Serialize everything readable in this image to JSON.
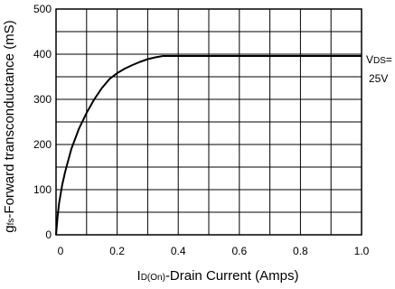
{
  "chart_data": {
    "type": "line",
    "title": "",
    "xlabel": {
      "main": "I",
      "sub": "D(On)",
      "rest": "-Drain Current (Amps)"
    },
    "ylabel": {
      "main": "g",
      "sub": "fs",
      "rest": "-Forward transconductance (mS)"
    },
    "xlim": [
      0,
      1.0
    ],
    "ylim": [
      0,
      500
    ],
    "x_ticks": [
      "0",
      "0.2",
      "0.4",
      "0.6",
      "0.8",
      "1.0"
    ],
    "x_tick_values": [
      0,
      0.2,
      0.4,
      0.6,
      0.8,
      1.0
    ],
    "y_ticks": [
      "0",
      "100",
      "200",
      "300",
      "400",
      "500"
    ],
    "y_tick_values": [
      0,
      100,
      200,
      300,
      400,
      500
    ],
    "grid": true,
    "grid_x_step": 0.1,
    "grid_y_step": 50,
    "annotation": {
      "line1_main": "V",
      "line1_sub": "DS",
      "line1_rest": "=",
      "line2": "25V"
    },
    "series": [
      {
        "color": "#000000",
        "x": [
          0,
          0.005,
          0.01,
          0.02,
          0.03,
          0.05,
          0.075,
          0.1,
          0.125,
          0.15,
          0.175,
          0.2,
          0.225,
          0.25,
          0.275,
          0.3,
          0.325,
          0.35,
          0.4,
          0.5,
          0.6,
          0.7,
          0.8,
          0.9,
          1.0
        ],
        "y": [
          0,
          40,
          70,
          110,
          140,
          190,
          235,
          270,
          300,
          325,
          345,
          358,
          368,
          376,
          383,
          389,
          393,
          396,
          396,
          396,
          396,
          396,
          396,
          396,
          396
        ]
      }
    ]
  }
}
